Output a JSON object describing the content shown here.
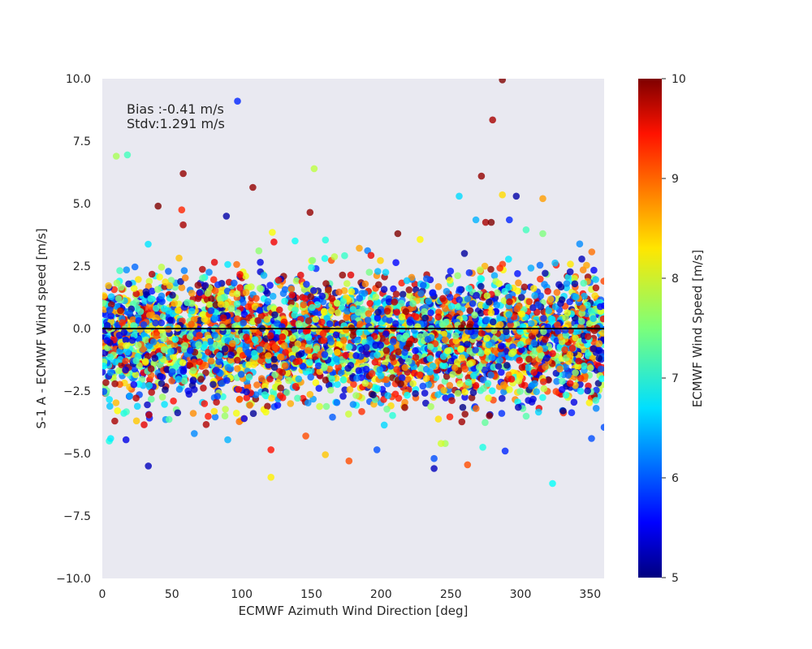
{
  "chart_data": {
    "type": "scatter",
    "title": "",
    "xlabel": "ECMWF Azimuth Wind Direction [deg]",
    "ylabel": "S-1 A - ECMWF Wind speed [m/s]",
    "xlim": [
      0,
      360
    ],
    "ylim": [
      -10,
      10
    ],
    "x_ticks": [
      "0",
      "50",
      "100",
      "150",
      "200",
      "250",
      "300",
      "350"
    ],
    "y_ticks": [
      "10.0",
      "7.5",
      "5.0",
      "2.5",
      "0.0",
      "−2.5",
      "−5.0",
      "−7.5",
      "−10.0"
    ],
    "grid": false,
    "background": "#e9e9f1",
    "colorbar": {
      "label": "ECMWF Wind Speed [m/s]",
      "range": [
        5,
        10
      ],
      "ticks": [
        "10",
        "9",
        "8",
        "7",
        "6",
        "5"
      ],
      "colormap": "jet"
    },
    "reference_line": {
      "y": 0,
      "color": "#000000"
    },
    "annotations": {
      "bias": "Bias :-0.41 m/s",
      "stdv": "Stdv:1.291 m/s"
    },
    "bulk_distribution": {
      "point_count": 4000,
      "mean_difference": -0.41,
      "std_difference": 1.291,
      "x_range": [
        0,
        360
      ],
      "speed_range": [
        5,
        10
      ]
    },
    "notable_points": [
      {
        "x": 97,
        "y": 9.1,
        "speed": 5.8
      },
      {
        "x": 287,
        "y": 9.95,
        "speed": 10
      },
      {
        "x": 280,
        "y": 8.35,
        "speed": 9.8
      },
      {
        "x": 10,
        "y": 6.9,
        "speed": 7.7
      },
      {
        "x": 18,
        "y": 6.95,
        "speed": 7.2
      },
      {
        "x": 152,
        "y": 6.4,
        "speed": 7.8
      },
      {
        "x": 58,
        "y": 6.2,
        "speed": 9.9
      },
      {
        "x": 108,
        "y": 5.65,
        "speed": 9.9
      },
      {
        "x": 272,
        "y": 6.1,
        "speed": 9.9
      },
      {
        "x": 256,
        "y": 5.3,
        "speed": 6.7
      },
      {
        "x": 287,
        "y": 5.35,
        "speed": 8.3
      },
      {
        "x": 297,
        "y": 5.3,
        "speed": 5.2
      },
      {
        "x": 316,
        "y": 5.2,
        "speed": 8.6
      },
      {
        "x": 40,
        "y": 4.9,
        "speed": 10
      },
      {
        "x": 57,
        "y": 4.75,
        "speed": 9.2
      },
      {
        "x": 58,
        "y": 4.15,
        "speed": 9.8
      },
      {
        "x": 89,
        "y": 4.5,
        "speed": 5.2
      },
      {
        "x": 149,
        "y": 4.65,
        "speed": 9.9
      },
      {
        "x": 268,
        "y": 4.35,
        "speed": 6.5
      },
      {
        "x": 275,
        "y": 4.25,
        "speed": 9.8
      },
      {
        "x": 279,
        "y": 4.25,
        "speed": 10
      },
      {
        "x": 292,
        "y": 4.35,
        "speed": 5.8
      },
      {
        "x": 304,
        "y": 3.95,
        "speed": 7.2
      },
      {
        "x": 316,
        "y": 3.8,
        "speed": 7.5
      },
      {
        "x": 212,
        "y": 3.8,
        "speed": 10
      },
      {
        "x": 122,
        "y": 3.85,
        "speed": 8.1
      },
      {
        "x": 197,
        "y": -4.85,
        "speed": 6.0
      },
      {
        "x": 33,
        "y": -5.5,
        "speed": 5.3
      },
      {
        "x": 121,
        "y": -4.85,
        "speed": 9.3
      },
      {
        "x": 121,
        "y": -5.95,
        "speed": 8.2
      },
      {
        "x": 160,
        "y": -5.05,
        "speed": 8.4
      },
      {
        "x": 177,
        "y": -5.3,
        "speed": 9.0
      },
      {
        "x": 238,
        "y": -5.6,
        "speed": 5.3
      },
      {
        "x": 238,
        "y": -5.2,
        "speed": 6.0
      },
      {
        "x": 262,
        "y": -5.45,
        "speed": 9.0
      },
      {
        "x": 289,
        "y": -4.9,
        "speed": 5.8
      },
      {
        "x": 323,
        "y": -6.2,
        "speed": 6.9
      },
      {
        "x": 5,
        "y": -4.5,
        "speed": 7.0
      },
      {
        "x": 6,
        "y": -4.4,
        "speed": 6.8
      },
      {
        "x": 17,
        "y": -4.45,
        "speed": 5.5
      },
      {
        "x": 146,
        "y": -4.3,
        "speed": 9.0
      },
      {
        "x": 90,
        "y": -4.45,
        "speed": 6.5
      },
      {
        "x": 66,
        "y": -4.2,
        "speed": 6.3
      },
      {
        "x": 273,
        "y": -4.75,
        "speed": 7.0
      },
      {
        "x": 351,
        "y": -4.4,
        "speed": 6.0
      },
      {
        "x": 360,
        "y": -3.95,
        "speed": 6.0
      },
      {
        "x": 246,
        "y": -4.6,
        "speed": 7.7
      },
      {
        "x": 243,
        "y": -4.6,
        "speed": 7.9
      },
      {
        "x": 9,
        "y": -3.7,
        "speed": 9.8
      },
      {
        "x": 30,
        "y": -3.85,
        "speed": 9.5
      }
    ]
  }
}
